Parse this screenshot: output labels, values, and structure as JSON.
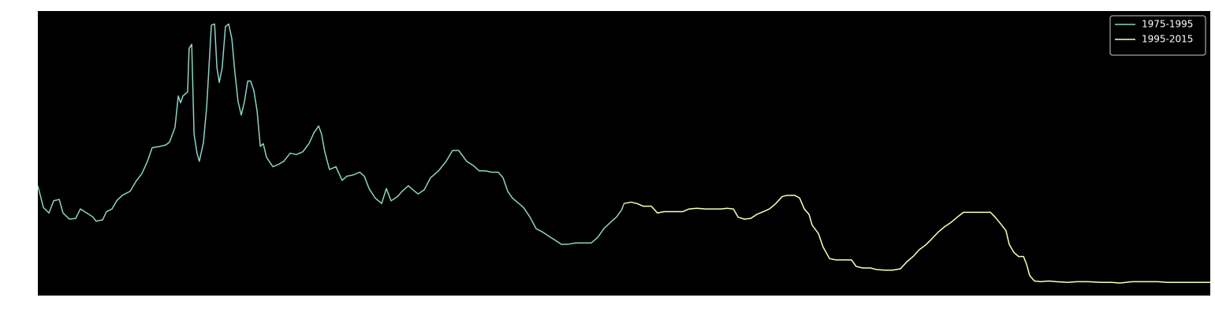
{
  "chart_data": {
    "type": "line",
    "xlim": [
      1975,
      2015
    ],
    "ylim": [
      -0.87,
      20.05
    ],
    "grid": false,
    "legend": "upper right",
    "series": [
      {
        "name": "1975-1995",
        "color": "#8dd3c7",
        "x": [
          1975.0,
          1975.19,
          1975.38,
          1975.54,
          1975.73,
          1975.86,
          1976.08,
          1976.29,
          1976.45,
          1976.67,
          1976.88,
          1976.99,
          1977.21,
          1977.34,
          1977.53,
          1977.69,
          1977.88,
          1978.15,
          1978.34,
          1978.55,
          1978.74,
          1978.9,
          1979.17,
          1979.36,
          1979.49,
          1979.68,
          1979.79,
          1979.87,
          1979.95,
          1980.11,
          1980.16,
          1980.25,
          1980.33,
          1980.43,
          1980.51,
          1980.65,
          1980.76,
          1980.92,
          1981.03,
          1981.11,
          1981.19,
          1981.29,
          1981.4,
          1981.51,
          1981.62,
          1981.72,
          1981.83,
          1981.94,
          1982.05,
          1982.16,
          1982.26,
          1982.37,
          1982.48,
          1982.59,
          1982.69,
          1982.8,
          1983.02,
          1983.23,
          1983.39,
          1983.61,
          1983.82,
          1984.04,
          1984.25,
          1984.42,
          1984.58,
          1984.68,
          1984.79,
          1984.95,
          1985.17,
          1985.38,
          1985.54,
          1985.76,
          1985.98,
          1986.14,
          1986.3,
          1986.51,
          1986.73,
          1986.89,
          1987.05,
          1987.27,
          1987.43,
          1987.64,
          1987.8,
          1987.97,
          1988.18,
          1988.4,
          1988.67,
          1988.93,
          1989.15,
          1989.36,
          1989.63,
          1989.85,
          1990.06,
          1990.28,
          1990.49,
          1990.71,
          1990.87,
          1991.03,
          1991.19,
          1991.41,
          1991.57,
          1991.79,
          1992.0,
          1992.22,
          1992.43,
          1992.65,
          1992.86,
          1993.08,
          1993.35,
          1993.61,
          1993.88,
          1994.1,
          1994.31,
          1994.53,
          1994.74,
          1994.91,
          1995.0
        ],
        "values": [
          7.2,
          5.6,
          5.2,
          6.1,
          6.2,
          5.2,
          4.75,
          4.8,
          5.5,
          5.2,
          4.9,
          4.6,
          4.7,
          5.3,
          5.5,
          6.1,
          6.5,
          6.8,
          7.5,
          8.1,
          9.0,
          10.0,
          10.1,
          10.2,
          10.4,
          11.5,
          13.8,
          13.3,
          13.8,
          14.1,
          17.3,
          17.6,
          11.0,
          9.6,
          9.0,
          10.4,
          13.0,
          19.0,
          19.1,
          15.9,
          14.8,
          15.9,
          18.9,
          19.1,
          18.0,
          15.6,
          13.4,
          12.4,
          13.4,
          14.9,
          14.9,
          14.2,
          12.7,
          10.1,
          10.3,
          9.3,
          8.6,
          8.8,
          9.0,
          9.6,
          9.5,
          9.7,
          10.3,
          11.1,
          11.6,
          11.0,
          9.7,
          8.4,
          8.6,
          7.6,
          7.9,
          8.0,
          8.2,
          7.9,
          7.0,
          6.3,
          5.9,
          7.0,
          6.1,
          6.4,
          6.8,
          7.2,
          6.9,
          6.6,
          6.9,
          7.8,
          8.3,
          9.0,
          9.8,
          9.8,
          9.0,
          8.7,
          8.3,
          8.3,
          8.2,
          8.2,
          7.8,
          6.8,
          6.3,
          5.9,
          5.6,
          4.9,
          4.05,
          3.8,
          3.5,
          3.2,
          2.9,
          2.9,
          3.0,
          3.0,
          3.0,
          3.4,
          4.05,
          4.5,
          4.9,
          5.4,
          5.9
        ]
      },
      {
        "name": "1995-2015",
        "color": "#ffffb3",
        "x": [
          1995.0,
          1995.23,
          1995.44,
          1995.66,
          1995.93,
          1996.14,
          1996.36,
          1996.57,
          1996.79,
          1997.0,
          1997.22,
          1997.49,
          1997.76,
          1998.03,
          1998.3,
          1998.51,
          1998.73,
          1998.89,
          1999.1,
          1999.32,
          1999.53,
          1999.75,
          1999.96,
          2000.18,
          2000.39,
          2000.55,
          2000.82,
          2000.99,
          2001.15,
          2001.31,
          2001.42,
          2001.63,
          2001.79,
          2002.01,
          2002.22,
          2002.49,
          2002.76,
          2002.92,
          2003.14,
          2003.41,
          2003.62,
          2003.89,
          2004.16,
          2004.43,
          2004.64,
          2004.86,
          2005.07,
          2005.29,
          2005.5,
          2005.72,
          2005.94,
          2006.15,
          2006.37,
          2006.58,
          2006.9,
          2007.23,
          2007.5,
          2007.66,
          2007.87,
          2008.03,
          2008.14,
          2008.3,
          2008.46,
          2008.63,
          2008.73,
          2008.84,
          2009.0,
          2009.22,
          2009.48,
          2009.75,
          2010.13,
          2010.45,
          2010.83,
          2011.26,
          2011.64,
          2011.91,
          2012.34,
          2012.77,
          2013.2,
          2013.52,
          2014.06,
          2014.6,
          2015.0
        ],
        "values": [
          5.9,
          6.0,
          5.9,
          5.7,
          5.7,
          5.2,
          5.3,
          5.3,
          5.3,
          5.3,
          5.5,
          5.55,
          5.5,
          5.5,
          5.5,
          5.55,
          5.5,
          4.9,
          4.75,
          4.8,
          5.1,
          5.3,
          5.5,
          5.9,
          6.4,
          6.5,
          6.5,
          6.3,
          5.5,
          5.1,
          4.3,
          3.7,
          2.7,
          1.85,
          1.75,
          1.75,
          1.75,
          1.27,
          1.16,
          1.16,
          1.04,
          1.0,
          1.0,
          1.1,
          1.6,
          2.0,
          2.5,
          2.85,
          3.3,
          3.8,
          4.2,
          4.5,
          4.9,
          5.25,
          5.25,
          5.25,
          5.25,
          4.9,
          4.35,
          3.9,
          2.9,
          2.3,
          2.0,
          2.0,
          1.45,
          0.6,
          0.2,
          0.15,
          0.2,
          0.15,
          0.1,
          0.15,
          0.15,
          0.1,
          0.1,
          0.05,
          0.15,
          0.15,
          0.15,
          0.1,
          0.1,
          0.1,
          0.1
        ]
      }
    ]
  }
}
